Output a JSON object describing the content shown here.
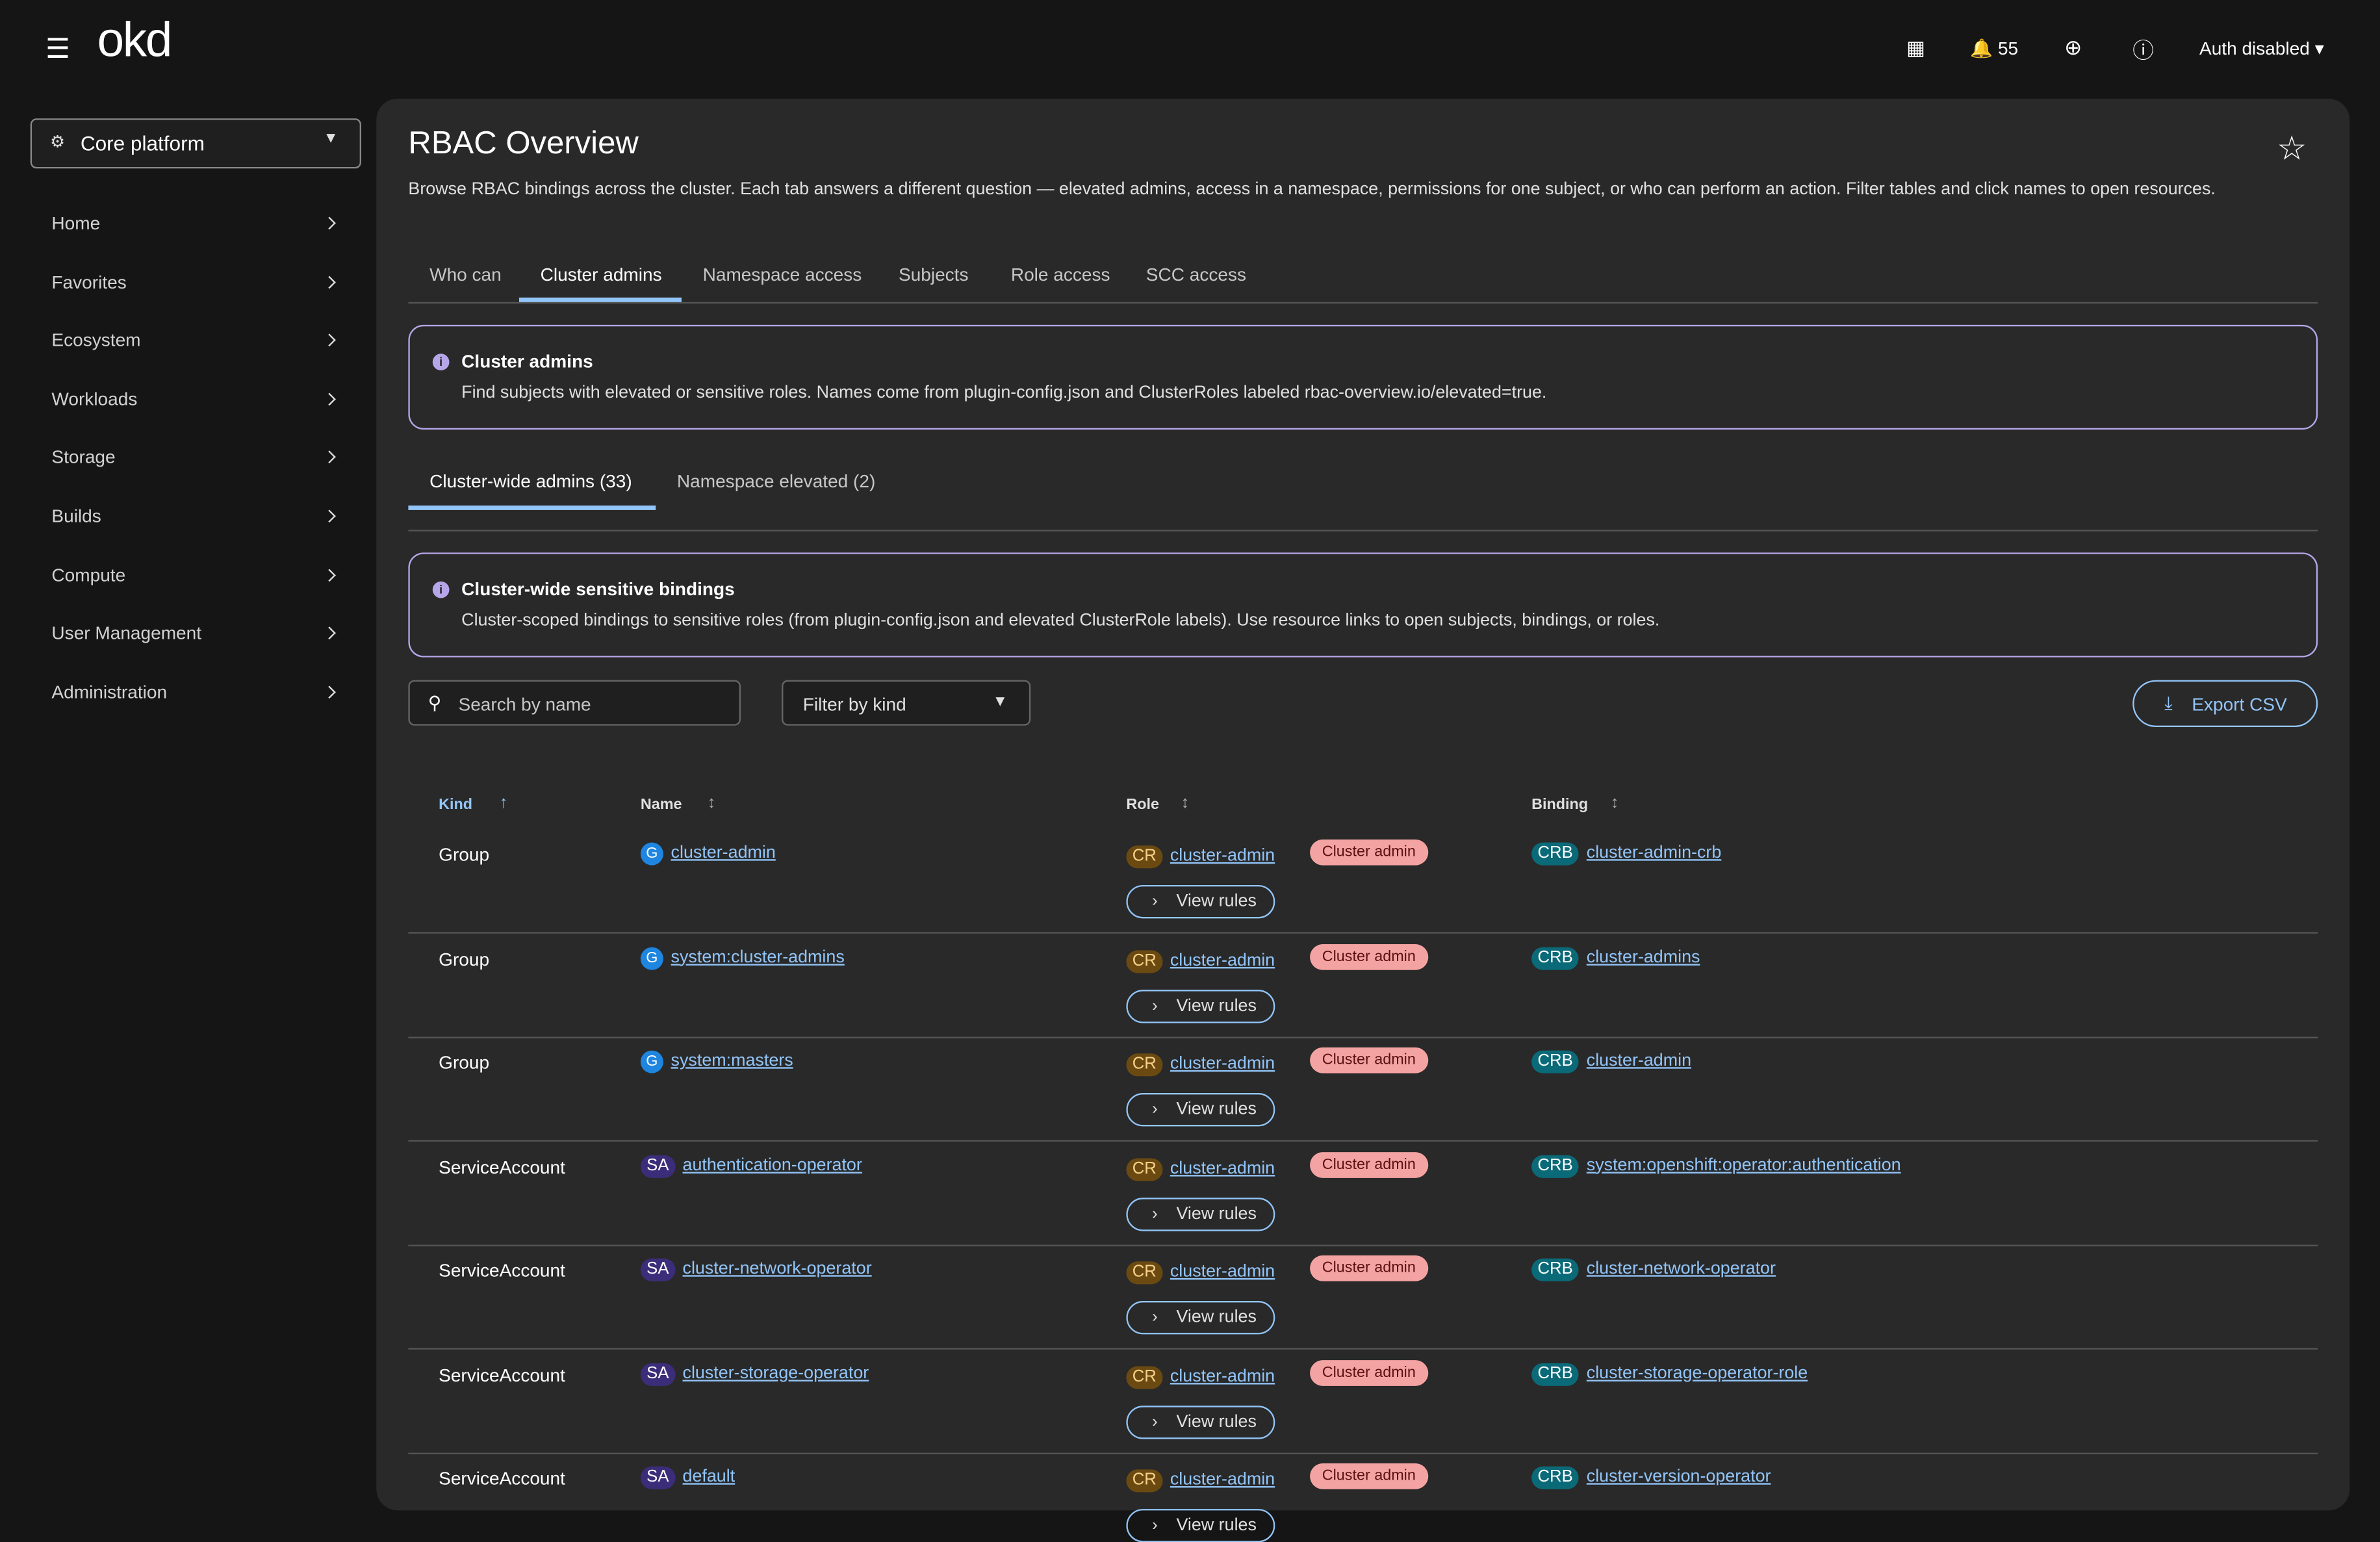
{
  "masthead": {
    "logo": "okd",
    "notifications": "55",
    "user": "Auth disabled"
  },
  "sidebar": {
    "perspective": "Core platform",
    "nav": [
      "Home",
      "Favorites",
      "Ecosystem",
      "Workloads",
      "Storage",
      "Builds",
      "Compute",
      "User Management",
      "Administration"
    ]
  },
  "page": {
    "title": "RBAC Overview",
    "description": "Browse RBAC bindings across the cluster. Each tab answers a different question — elevated admins, access in a namespace, permissions for one subject, or who can perform an action. Filter tables and click names to open resources.",
    "tabs": [
      "Who can",
      "Cluster admins",
      "Namespace access",
      "Subjects",
      "Role access",
      "SCC access"
    ],
    "alert": {
      "title": "Cluster admins",
      "body": "Find subjects with elevated or sensitive roles. Names come from plugin-config.json and ClusterRoles labeled rbac-overview.io/elevated=true."
    },
    "subtabs": [
      "Cluster-wide admins (33)",
      "Namespace elevated (2)"
    ],
    "alert2": {
      "title": "Cluster-wide sensitive bindings",
      "body": "Cluster-scoped bindings to sensitive roles (from plugin-config.json and elevated ClusterRole labels). Use resource links to open subjects, bindings, or roles."
    },
    "search_placeholder": "Search by name",
    "filter": "Filter by kind",
    "export": "Export CSV"
  },
  "table": {
    "columns": [
      "Kind",
      "Name",
      "Role",
      "Binding"
    ],
    "rows": [
      {
        "kind": "Group",
        "name_badge": "G",
        "name": "cluster-admin",
        "role_badge": "CR",
        "role": "cluster-admin",
        "label": "Cluster admin",
        "action": "View rules",
        "binding_badge": "CRB",
        "binding": "cluster-admin-crb"
      },
      {
        "kind": "Group",
        "name_badge": "G",
        "name": "system:cluster-admins",
        "role_badge": "CR",
        "role": "cluster-admin",
        "label": "Cluster admin",
        "action": "View rules",
        "binding_badge": "CRB",
        "binding": "cluster-admins"
      },
      {
        "kind": "Group",
        "name_badge": "G",
        "name": "system:masters",
        "role_badge": "CR",
        "role": "cluster-admin",
        "label": "Cluster admin",
        "action": "View rules",
        "binding_badge": "CRB",
        "binding": "cluster-admin"
      },
      {
        "kind": "ServiceAccount",
        "name_badge": "SA",
        "name": "authentication-operator",
        "role_badge": "CR",
        "role": "cluster-admin",
        "label": "Cluster admin",
        "action": "View rules",
        "binding_badge": "CRB",
        "binding": "system:openshift:operator:authentication"
      },
      {
        "kind": "ServiceAccount",
        "name_badge": "SA",
        "name": "cluster-network-operator",
        "role_badge": "CR",
        "role": "cluster-admin",
        "label": "Cluster admin",
        "action": "View rules",
        "binding_badge": "CRB",
        "binding": "cluster-network-operator"
      },
      {
        "kind": "ServiceAccount",
        "name_badge": "SA",
        "name": "cluster-storage-operator",
        "role_badge": "CR",
        "role": "cluster-admin",
        "label": "Cluster admin",
        "action": "View rules",
        "binding_badge": "CRB",
        "binding": "cluster-storage-operator-role"
      },
      {
        "kind": "ServiceAccount",
        "name_badge": "SA",
        "name": "default",
        "role_badge": "CR",
        "role": "cluster-admin",
        "label": "Cluster admin",
        "action": "View rules",
        "binding_badge": "CRB",
        "binding": "cluster-version-operator"
      }
    ]
  }
}
